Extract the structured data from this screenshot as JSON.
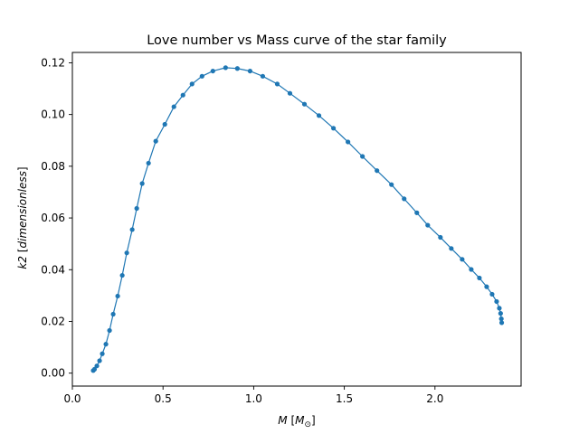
{
  "chart_data": {
    "type": "line",
    "title": "Love number vs Mass curve of the star family",
    "xlabel": {
      "symbol": "M",
      "unit_open": " [",
      "unit_symbol": "M",
      "unit_sub": "⊙",
      "unit_close": "]"
    },
    "ylabel": {
      "symbol": "k2",
      "unit_open": " [",
      "unit_text": "dimensionless",
      "unit_close": "]"
    },
    "xlim": [
      0.0,
      2.475
    ],
    "ylim": [
      -0.005,
      0.124
    ],
    "xticks": [
      0.0,
      0.5,
      1.0,
      1.5,
      2.0
    ],
    "xtick_labels": [
      "0.0",
      "0.5",
      "1.0",
      "1.5",
      "2.0"
    ],
    "yticks": [
      0.0,
      0.02,
      0.04,
      0.06,
      0.08,
      0.1,
      0.12
    ],
    "ytick_labels": [
      "0.00",
      "0.02",
      "0.04",
      "0.06",
      "0.08",
      "0.10",
      "0.12"
    ],
    "grid": false,
    "series": [
      {
        "color": "#1f77b4",
        "marker": "circle",
        "x": [
          0.115,
          0.122,
          0.135,
          0.15,
          0.165,
          0.185,
          0.205,
          0.225,
          0.25,
          0.275,
          0.3,
          0.33,
          0.355,
          0.385,
          0.42,
          0.46,
          0.51,
          0.56,
          0.61,
          0.66,
          0.715,
          0.775,
          0.845,
          0.91,
          0.98,
          1.05,
          1.13,
          1.2,
          1.28,
          1.36,
          1.44,
          1.52,
          1.6,
          1.68,
          1.76,
          1.83,
          1.9,
          1.96,
          2.03,
          2.09,
          2.15,
          2.2,
          2.245,
          2.285,
          2.315,
          2.34,
          2.355,
          2.362,
          2.366,
          2.368
        ],
        "y": [
          0.001,
          0.0015,
          0.0028,
          0.0048,
          0.0075,
          0.0112,
          0.0165,
          0.0228,
          0.0298,
          0.0378,
          0.0465,
          0.0555,
          0.0637,
          0.0733,
          0.0812,
          0.0897,
          0.0962,
          0.103,
          0.1075,
          0.1118,
          0.1148,
          0.1168,
          0.1181,
          0.1178,
          0.1168,
          0.1148,
          0.1118,
          0.1082,
          0.104,
          0.0996,
          0.0947,
          0.0894,
          0.0838,
          0.0783,
          0.0729,
          0.0674,
          0.062,
          0.0572,
          0.0525,
          0.0482,
          0.044,
          0.0401,
          0.0368,
          0.0334,
          0.0305,
          0.0277,
          0.0251,
          0.0231,
          0.021,
          0.0195
        ]
      }
    ]
  }
}
